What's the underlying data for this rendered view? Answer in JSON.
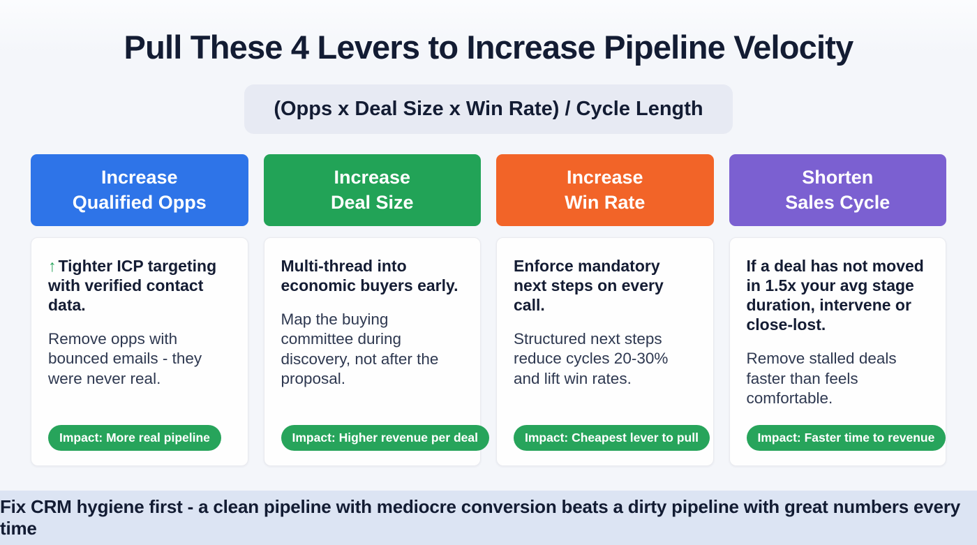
{
  "page": {
    "title": "Pull These 4 Levers to Increase Pipeline Velocity",
    "formula": "(Opps x Deal Size x Win Rate) / Cycle Length",
    "footer": "Fix CRM hygiene first - a clean pipeline with mediocre conversion beats a dirty pipeline with great numbers every time"
  },
  "colors": {
    "page_bg": "#f4f6fa",
    "title_navy": "#131c33",
    "formula_bg": "#e7eaf3",
    "badge_green": "#27a45b",
    "footer_bg": "#dce4f3",
    "lever_blue": "#2e74e8",
    "lever_green": "#22a357",
    "lever_orange": "#f26428",
    "lever_purple": "#7b60d1"
  },
  "levers": [
    {
      "header": "Increase\nQualified Opps",
      "color": "#2e74e8",
      "icon": "↑",
      "headline": "Tighter ICP targeting with verified contact data.",
      "body": "Remove opps with bounced emails - they were never real.",
      "impact": "Impact: More real pipeline"
    },
    {
      "header": "Increase\nDeal Size",
      "color": "#22a357",
      "headline": "Multi-thread into economic buyers early.",
      "body": "Map the buying committee during discovery, not after the proposal.",
      "impact": "Impact: Higher revenue per deal"
    },
    {
      "header": "Increase\nWin Rate",
      "color": "#f26428",
      "headline": "Enforce mandatory next steps on every call.",
      "body": "Structured next steps reduce cycles 20-30% and lift win rates.",
      "impact": "Impact: Cheapest lever to pull"
    },
    {
      "header": "Shorten\nSales Cycle",
      "color": "#7b60d1",
      "headline": "If a deal has not moved in 1.5x your avg stage duration, intervene or close-lost.",
      "body": "Remove stalled deals faster than feels comfortable.",
      "impact": "Impact: Faster time to revenue"
    }
  ]
}
